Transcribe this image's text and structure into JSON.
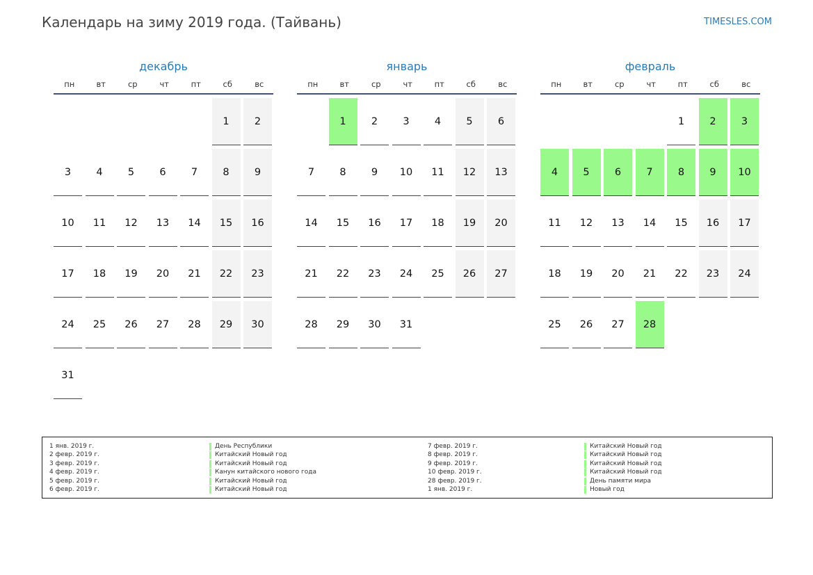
{
  "header": {
    "title": "Календарь на зиму 2019 года. (Тайвань)",
    "site": "TIMESLES.COM"
  },
  "colors": {
    "accent": "#2b7ab5",
    "holiday": "#99f98a",
    "weekend": "#f3f3f3"
  },
  "weekdays": [
    "пн",
    "вт",
    "ср",
    "чт",
    "пт",
    "сб",
    "вс"
  ],
  "months": [
    {
      "name": "декабрь",
      "offset": 5,
      "days": 31,
      "holidays": []
    },
    {
      "name": "январь",
      "offset": 1,
      "days": 31,
      "holidays": [
        1
      ]
    },
    {
      "name": "февраль",
      "offset": 4,
      "days": 28,
      "holidays": [
        2,
        3,
        4,
        5,
        6,
        7,
        8,
        9,
        10,
        28
      ]
    }
  ],
  "legend": [
    [
      {
        "date": "1 янв. 2019 г.",
        "name": "День Республики"
      },
      {
        "date": "2 февр. 2019 г.",
        "name": "Китайский Новый год"
      },
      {
        "date": "3 февр. 2019 г.",
        "name": "Китайский Новый год"
      },
      {
        "date": "4 февр. 2019 г.",
        "name": "Канун китайского нового года"
      },
      {
        "date": "5 февр. 2019 г.",
        "name": "Китайский Новый год"
      },
      {
        "date": "6 февр. 2019 г.",
        "name": "Китайский Новый год"
      }
    ],
    [
      {
        "date": "7 февр. 2019 г.",
        "name": "Китайский Новый год"
      },
      {
        "date": "8 февр. 2019 г.",
        "name": "Китайский Новый год"
      },
      {
        "date": "9 февр. 2019 г.",
        "name": "Китайский Новый год"
      },
      {
        "date": "10 февр. 2019 г.",
        "name": "Китайский Новый год"
      },
      {
        "date": "28 февр. 2019 г.",
        "name": "День памяти мира"
      },
      {
        "date": "1 янв. 2019 г.",
        "name": "Новый год"
      }
    ]
  ]
}
